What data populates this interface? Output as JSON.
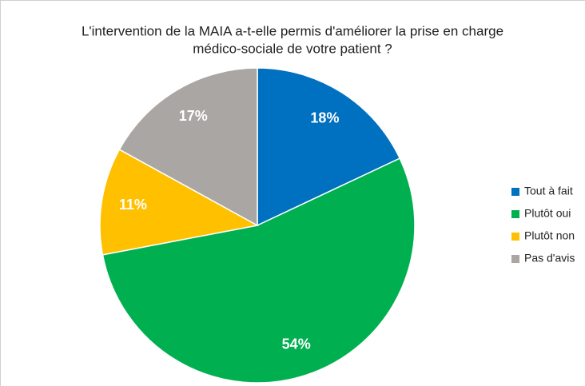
{
  "chart_data": {
    "type": "pie",
    "title": [
      "L'intervention de la MAIA a-t-elle permis d'améliorer la prise en charge",
      "médico-sociale de votre patient ?"
    ],
    "categories": [
      "Tout à fait",
      "Plutôt oui",
      "Plutôt non",
      "Pas d'avis"
    ],
    "values": [
      18,
      54,
      11,
      17
    ],
    "value_labels": [
      "18%",
      "54%",
      "11%",
      "17%"
    ],
    "colors": [
      "#0070c0",
      "#00b050",
      "#ffc000",
      "#aaa6a3"
    ],
    "legend": "right"
  }
}
